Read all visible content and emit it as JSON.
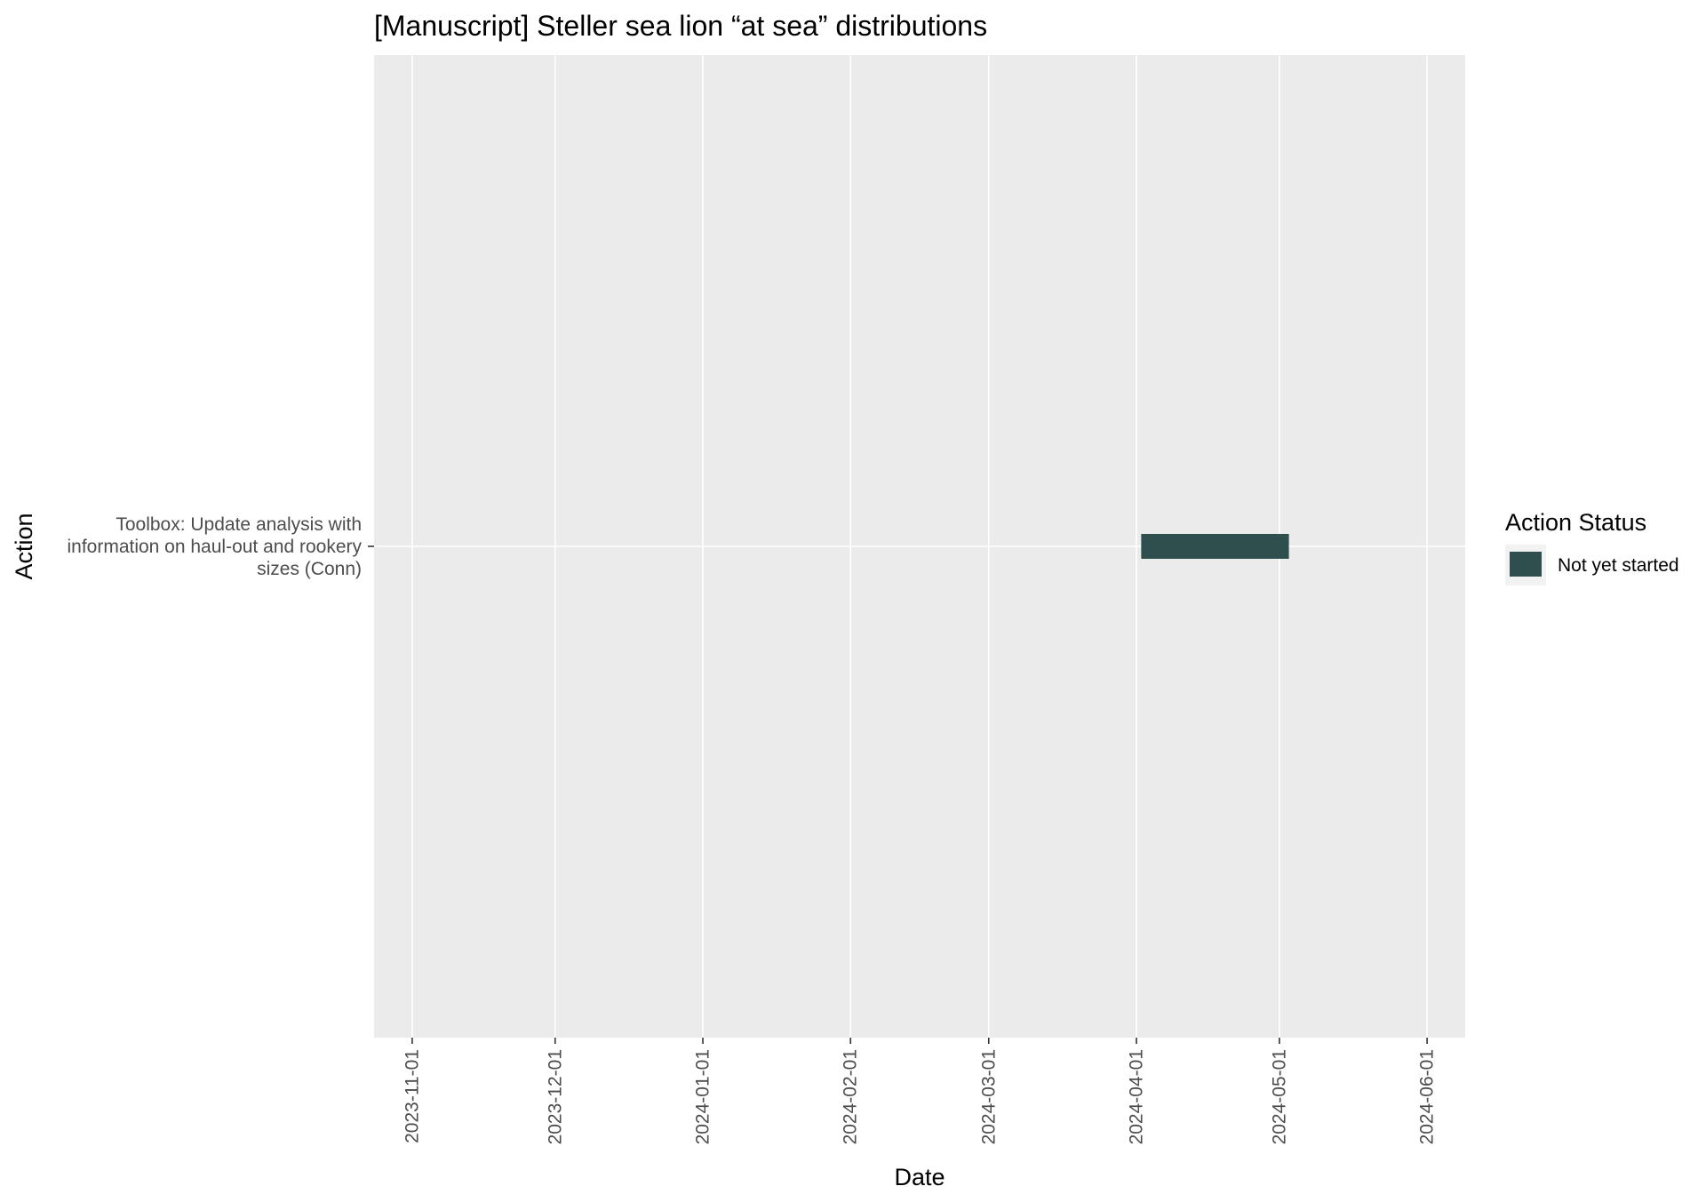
{
  "colors": {
    "panel_background": "#ebebeb",
    "grid_major": "#ffffff",
    "not_yet_started": "#2f4f4f"
  },
  "chart_data": {
    "type": "bar",
    "orientation": "horizontal-gantt",
    "title": "[Manuscript] Steller sea lion “at sea” distributions",
    "xlabel": "Date",
    "ylabel": "Action",
    "x_type": "date",
    "xlim": [
      "2023-10-24",
      "2024-06-09"
    ],
    "x_ticks": [
      "2023-11-01",
      "2023-12-01",
      "2024-01-01",
      "2024-02-01",
      "2024-03-01",
      "2024-04-01",
      "2024-05-01",
      "2024-06-01"
    ],
    "categories": [
      "Toolbox: Update analysis with information on haul-out and rookery sizes (Conn)"
    ],
    "category_label_lines": [
      [
        "Toolbox: Update analysis with",
        "information on haul-out and rookery",
        "sizes (Conn)"
      ]
    ],
    "tasks": [
      {
        "action": "Toolbox: Update analysis with information on haul-out and rookery sizes (Conn)",
        "start": "2024-04-02",
        "end": "2024-05-03",
        "status": "Not yet started"
      }
    ],
    "grid": true,
    "legend": {
      "title": "Action Status",
      "position": "right",
      "items": [
        {
          "label": "Not yet started",
          "color": "#2f4f4f"
        }
      ]
    }
  }
}
